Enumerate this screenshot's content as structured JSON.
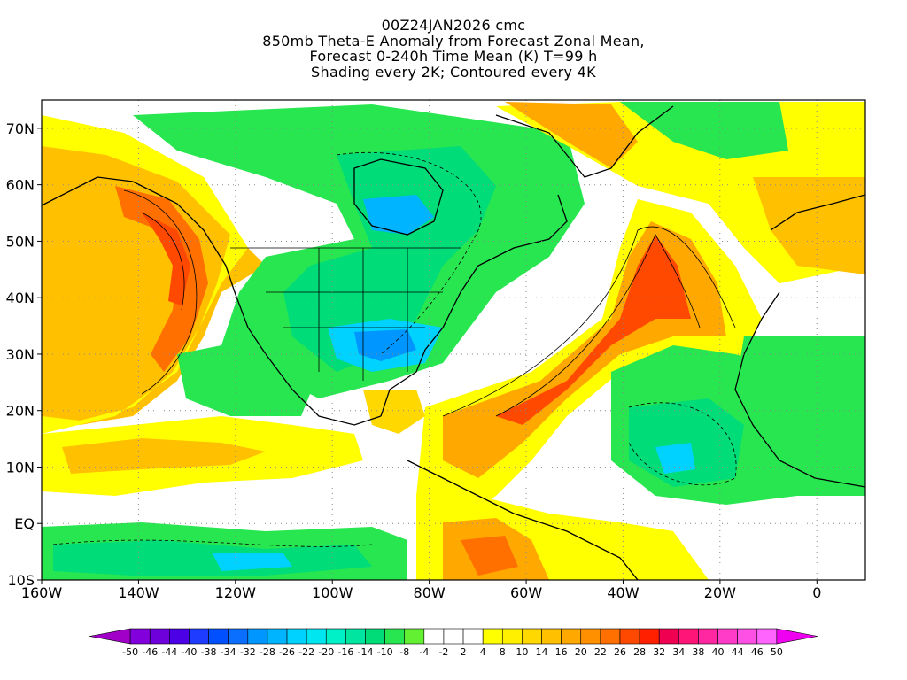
{
  "titles": [
    "00Z24JAN2026 cmc",
    "850mb Theta-E Anomaly from Forecast Zonal Mean,",
    "Forecast 0-240h Time Mean (K) T=99 h",
    "Shading every 2K; Contoured every 4K"
  ],
  "map": {
    "lon_range": [
      -160,
      10
    ],
    "lat_range": [
      -10,
      75
    ],
    "lon_ticks": [
      {
        "value": -160,
        "label": "160W"
      },
      {
        "value": -140,
        "label": "140W"
      },
      {
        "value": -120,
        "label": "120W"
      },
      {
        "value": -100,
        "label": "100W"
      },
      {
        "value": -80,
        "label": "80W"
      },
      {
        "value": -60,
        "label": "60W"
      },
      {
        "value": -40,
        "label": "40W"
      },
      {
        "value": -20,
        "label": "20W"
      },
      {
        "value": 0,
        "label": "0"
      }
    ],
    "lat_ticks": [
      {
        "value": 70,
        "label": "70N"
      },
      {
        "value": 60,
        "label": "60N"
      },
      {
        "value": 50,
        "label": "50N"
      },
      {
        "value": 40,
        "label": "40N"
      },
      {
        "value": 30,
        "label": "30N"
      },
      {
        "value": 20,
        "label": "20N"
      },
      {
        "value": 10,
        "label": "10N"
      },
      {
        "value": 0,
        "label": "EQ"
      },
      {
        "value": -10,
        "label": "10S"
      }
    ],
    "grid": true
  },
  "colorbar": {
    "labels": [
      "-50",
      "-46",
      "-44",
      "-40",
      "-38",
      "-34",
      "-32",
      "-28",
      "-26",
      "-22",
      "-20",
      "-16",
      "-14",
      "-10",
      "-8",
      "-4",
      "-2",
      "2",
      "4",
      "8",
      "10",
      "14",
      "16",
      "20",
      "22",
      "26",
      "28",
      "32",
      "34",
      "38",
      "40",
      "44",
      "46",
      "50"
    ],
    "colors": [
      "#a000c8",
      "#8200dc",
      "#6e00dc",
      "#4b00e6",
      "#1e3cff",
      "#0050ff",
      "#0a6eff",
      "#0096ff",
      "#00b4ff",
      "#00d2ff",
      "#00e6f0",
      "#00f0c8",
      "#00e6a0",
      "#00dc78",
      "#28e650",
      "#64f032",
      "#ffffff",
      "#ffffff",
      "#ffffff",
      "#ffff00",
      "#fff000",
      "#ffd800",
      "#ffc000",
      "#ffa800",
      "#ff9000",
      "#ff7000",
      "#ff4800",
      "#ff2000",
      "#f00050",
      "#ff1478",
      "#ff28a0",
      "#ff3cc8",
      "#ff50e6",
      "#ff64ff",
      "#f000f0"
    ]
  },
  "palette": {
    "neg_deep": "#0096ff",
    "neg_mid": "#00dc78",
    "neg_light": "#64f032",
    "pos_yellow": "#ffff00",
    "pos_orange": "#ffa800",
    "pos_red": "#ff4800"
  }
}
